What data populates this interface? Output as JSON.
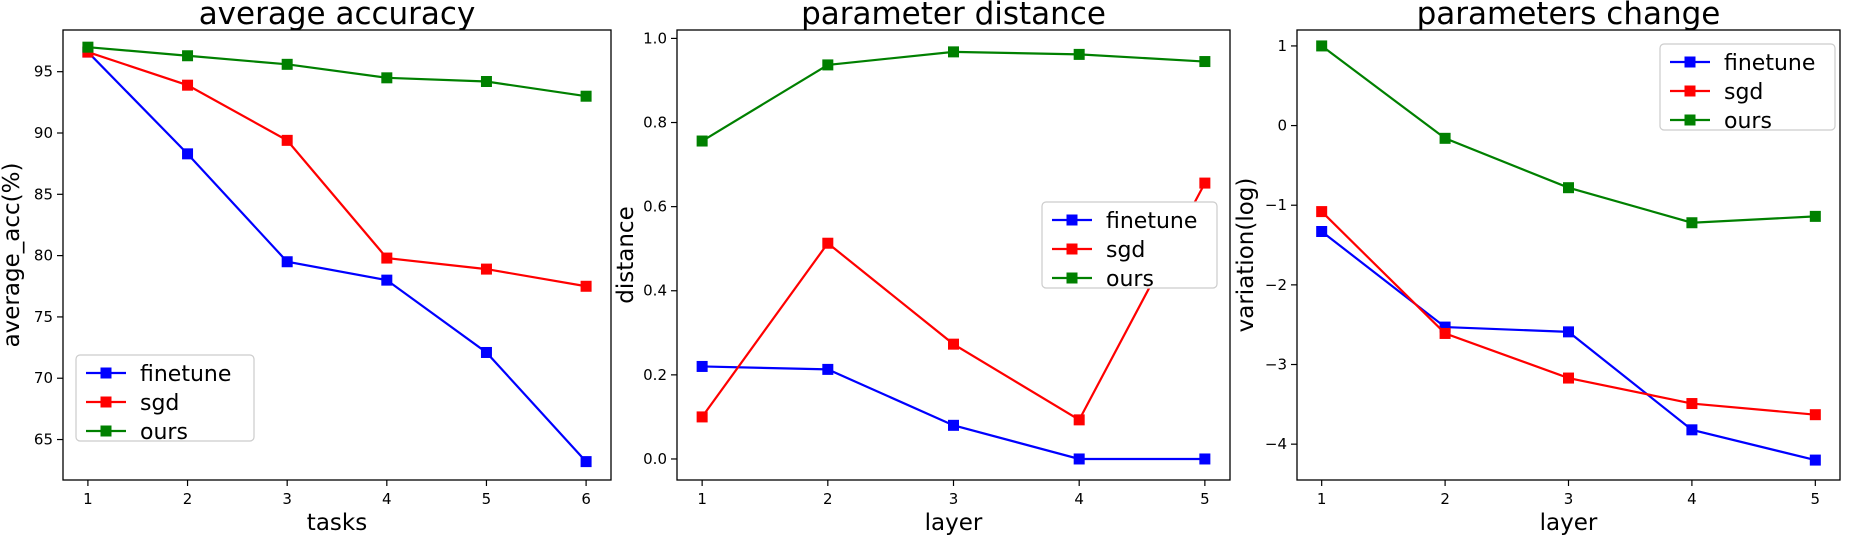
{
  "colors": {
    "finetune": "#0000ff",
    "sgd": "#ff0000",
    "ours": "#008000"
  },
  "chart_data": [
    {
      "type": "line",
      "title": "average accuracy",
      "xlabel": "tasks",
      "ylabel": "average_acc(%)",
      "x": [
        1,
        2,
        3,
        4,
        5,
        6
      ],
      "xlim": [
        0.75,
        6.25
      ],
      "ylim": [
        61.7,
        98.4
      ],
      "yticks": [
        65,
        70,
        75,
        80,
        85,
        90,
        95
      ],
      "ytick_labels": [
        "65",
        "70",
        "75",
        "80",
        "85",
        "90",
        "95"
      ],
      "legend_position": "lower-left",
      "series": [
        {
          "name": "finetune",
          "color": "#0000ff",
          "values": [
            96.6,
            88.3,
            79.5,
            78.0,
            72.1,
            63.2
          ]
        },
        {
          "name": " sgd",
          "color": "#ff0000",
          "values": [
            96.6,
            93.9,
            89.4,
            79.8,
            78.9,
            77.5
          ]
        },
        {
          "name": "ours",
          "color": "#008000",
          "values": [
            97.0,
            96.3,
            95.6,
            94.5,
            94.2,
            93.0
          ]
        }
      ]
    },
    {
      "type": "line",
      "title": "parameter distance",
      "xlabel": "layer",
      "ylabel": "distance",
      "x": [
        1,
        2,
        3,
        4,
        5
      ],
      "xlim": [
        0.8,
        5.2
      ],
      "ylim": [
        -0.05,
        1.02
      ],
      "yticks": [
        0.0,
        0.2,
        0.4,
        0.6,
        0.8,
        1.0
      ],
      "ytick_labels": [
        "0.0",
        "0.2",
        "0.4",
        "0.6",
        "0.8",
        "1.0"
      ],
      "legend_position": "center-right",
      "series": [
        {
          "name": "finetune",
          "color": "#0000ff",
          "values": [
            0.22,
            0.213,
            0.08,
            0.0,
            0.0
          ]
        },
        {
          "name": " sgd",
          "color": "#ff0000",
          "values": [
            0.1,
            0.513,
            0.273,
            0.093,
            0.656
          ]
        },
        {
          "name": "ours",
          "color": "#008000",
          "values": [
            0.756,
            0.937,
            0.968,
            0.962,
            0.945
          ]
        }
      ]
    },
    {
      "type": "line",
      "title": "parameters change",
      "xlabel": "layer",
      "ylabel": "variation(log)",
      "x": [
        1,
        2,
        3,
        4,
        5
      ],
      "xlim": [
        0.8,
        5.2
      ],
      "ylim": [
        -4.45,
        1.2
      ],
      "yticks": [
        -4,
        -3,
        -2,
        -1,
        0,
        1
      ],
      "ytick_labels": [
        "−4",
        "−3",
        "−2",
        "−1",
        "0",
        "1"
      ],
      "legend_position": "top-right",
      "series": [
        {
          "name": "finetune",
          "color": "#0000ff",
          "values": [
            -1.33,
            -2.53,
            -2.59,
            -3.82,
            -4.2
          ]
        },
        {
          "name": " sgd",
          "color": "#ff0000",
          "values": [
            -1.08,
            -2.61,
            -3.17,
            -3.49,
            -3.63
          ]
        },
        {
          "name": "ours",
          "color": "#008000",
          "values": [
            1.0,
            -0.16,
            -0.78,
            -1.22,
            -1.14
          ]
        }
      ]
    }
  ]
}
